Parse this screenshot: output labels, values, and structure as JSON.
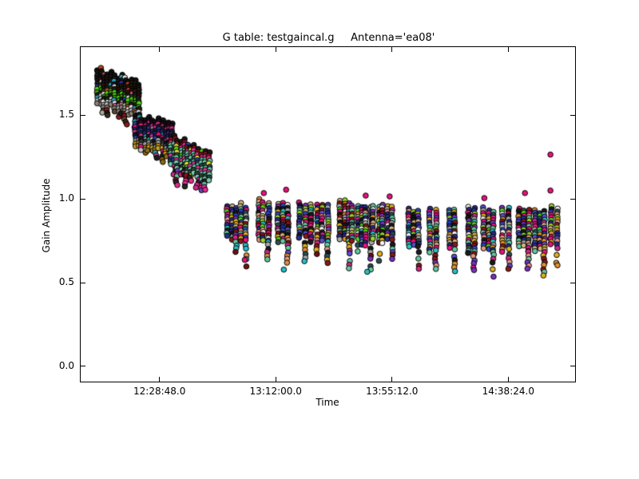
{
  "figure": {
    "background": "#ffffff",
    "spine_color": "#000000"
  },
  "chart_data": {
    "type": "scatter",
    "title": "G table: testgaincal.g     Antenna='ea08'",
    "xlabel": "Time",
    "ylabel": "Gain Amplitude",
    "grid": false,
    "legend": "none",
    "x_axis_unit": "time of day (hh:mm:ss)",
    "x_range_sec": [
      43170,
      54195
    ],
    "y_range": [
      -0.091,
      1.907
    ],
    "x_ticks": [
      {
        "label": "12:28:48.0",
        "sec": 44928
      },
      {
        "label": "13:12:00.0",
        "sec": 47520
      },
      {
        "label": "13:55:12.0",
        "sec": 50112
      },
      {
        "label": "14:38:24.0",
        "sec": 52704
      }
    ],
    "y_ticks": [
      {
        "label": "0.0",
        "value": 0.0
      },
      {
        "label": "0.5",
        "value": 0.5
      },
      {
        "label": "1.0",
        "value": 1.0
      },
      {
        "label": "1.5",
        "value": 1.5
      }
    ],
    "marker": {
      "shape": "circle",
      "radius": 3.3,
      "edge_color": "#000000"
    },
    "blocks": [
      {
        "t0": 43543,
        "t1": 44537,
        "amp_top_start": 1.77,
        "amp_top_end": 1.7,
        "core_rows": 13,
        "leg_rows": 8,
        "row_colors": [
          "#151310",
          "#1a1a12",
          "#23180f",
          "#101820",
          "#3a1408",
          "#1c1c1c",
          "#294013",
          "#52d414",
          "#3f9e0a",
          "#1e2014",
          "#dedede",
          "#bcbcbc",
          "#8a8178"
        ],
        "leg_colors": [
          "#2a2119",
          "#3a2a1a",
          "#c89060",
          "#8b1a1a",
          "#b0a89c",
          "#1c1c1c",
          "#d8d8d8",
          "#5a4632"
        ],
        "accent_colors": [
          "#30a0c0",
          "#2834a0",
          "#d06080",
          "#c84818",
          "#e8e8e8",
          "#58d018"
        ]
      },
      {
        "t0": 44378,
        "t1": 45265,
        "amp_top_start": 1.495,
        "amp_top_end": 1.45,
        "core_rows": 12,
        "leg_rows": 7,
        "row_colors": [
          "#161616",
          "#241018",
          "#d4258f",
          "#1d1d28",
          "#2a2e80",
          "#232868",
          "#e0389a",
          "#1a1a1a",
          "#34343c",
          "#9a9a9a",
          "#d4a017",
          "#caa02c"
        ],
        "leg_colors": [
          "#d4a017",
          "#b0b0b0",
          "#e0389a",
          "#1e1e1e",
          "#c8c8c8",
          "#8a6a14"
        ],
        "accent_colors": [
          "#3040c0",
          "#e8127e",
          "#20a0a0",
          "#c0c0c0"
        ]
      },
      {
        "t0": 45177,
        "t1": 46082,
        "amp_top_start": 1.375,
        "amp_top_end": 1.27,
        "core_rows": 11,
        "leg_rows": 9,
        "row_colors": [
          "#1b1b1b",
          "#8b1515",
          "#e82a90",
          "#63c8a0",
          "#6fcfa8",
          "#2f4f4f",
          "#5cc8a2",
          "#e8359e",
          "#69cda6",
          "#2a443a",
          "#74d0ac"
        ],
        "leg_colors": [
          "#e8359e",
          "#d02888",
          "#8b1515",
          "#7040c0",
          "#5cc8a2",
          "#242424",
          "#e82a90"
        ],
        "accent_colors": [
          "#50e018",
          "#3040c0",
          "#e8e030"
        ]
      }
    ],
    "scans": [
      {
        "sec": 46526,
        "top": 0.97,
        "lo": 0.76,
        "tail": 0.67,
        "cols": 3
      },
      {
        "sec": 46792,
        "top": 0.975,
        "lo": 0.74,
        "tail": 0.585,
        "cols": 2
      },
      {
        "sec": 47236,
        "top": 1.0,
        "lo": 0.76,
        "tail": 0.63,
        "cols": 3
      },
      {
        "sec": 47680,
        "top": 0.985,
        "lo": 0.74,
        "tail": 0.6,
        "cols": 3
      },
      {
        "sec": 48106,
        "top": 0.98,
        "lo": 0.75,
        "tail": 0.615,
        "cols": 2
      },
      {
        "sec": 48372,
        "top": 0.985,
        "lo": 0.73,
        "tail": 0.655,
        "cols": 2
      },
      {
        "sec": 48603,
        "top": 0.975,
        "lo": 0.76,
        "tail": 0.6,
        "cols": 2
      },
      {
        "sec": 49047,
        "top": 1.0,
        "lo": 0.75,
        "tail": 0.585,
        "cols": 3
      },
      {
        "sec": 49278,
        "top": 0.98,
        "lo": 0.74,
        "tail": 0.67,
        "cols": 2
      },
      {
        "sec": 49526,
        "top": 0.97,
        "lo": 0.72,
        "tail": 0.565,
        "cols": 3
      },
      {
        "sec": 49757,
        "top": 0.975,
        "lo": 0.75,
        "tail": 0.62,
        "cols": 2
      },
      {
        "sec": 50006,
        "top": 0.98,
        "lo": 0.74,
        "tail": 0.63,
        "cols": 3
      },
      {
        "sec": 50591,
        "top": 0.95,
        "lo": 0.7,
        "tail": 0.565,
        "cols": 3
      },
      {
        "sec": 51017,
        "top": 0.96,
        "lo": 0.68,
        "tail": 0.545,
        "cols": 2
      },
      {
        "sec": 51443,
        "top": 0.955,
        "lo": 0.71,
        "tail": 0.555,
        "cols": 2
      },
      {
        "sec": 51869,
        "top": 0.96,
        "lo": 0.67,
        "tail": 0.555,
        "cols": 2
      },
      {
        "sec": 52260,
        "top": 0.95,
        "lo": 0.7,
        "tail": 0.53,
        "cols": 3
      },
      {
        "sec": 52650,
        "top": 0.965,
        "lo": 0.68,
        "tail": 0.565,
        "cols": 2
      },
      {
        "sec": 53041,
        "top": 0.95,
        "lo": 0.7,
        "tail": 0.545,
        "cols": 3
      },
      {
        "sec": 53396,
        "top": 0.945,
        "lo": 0.68,
        "tail": 0.525,
        "cols": 3
      },
      {
        "sec": 53715,
        "top": 0.96,
        "lo": 0.72,
        "tail": 0.6,
        "cols": 2
      }
    ],
    "scan_palette": [
      "#E8127E",
      "#E8127E",
      "#E8127E",
      "#262E8C",
      "#262E8C",
      "#262E8C",
      "#1A1A1A",
      "#1A1A1A",
      "#55D418",
      "#9CD42A",
      "#66C9A0",
      "#66C9A0",
      "#28C0C8",
      "#E09030",
      "#D4B483",
      "#8B1818",
      "#8B1818",
      "#7B2FBE",
      "#5A4FCF",
      "#A8A8A8",
      "#F2F2F2",
      "#E0B020",
      "#E59880",
      "#2F4F4F",
      "#D02888",
      "#3048C8"
    ],
    "scan_top_palette": [
      "#D4B483",
      "#F2F2F2",
      "#9CD42A",
      "#66C9A0",
      "#E8127E",
      "#262E8C",
      "#7B2FBE",
      "#E09030"
    ],
    "tail_palette": [
      "#66C9A0",
      "#66C9A0",
      "#8B1818",
      "#7B2FBE",
      "#2F4F4F",
      "#E09030",
      "#E59880",
      "#28C0C8",
      "#5A4FCF",
      "#A8A8A8",
      "#701010",
      "#D02888",
      "#1A1A1A",
      "#E0B020"
    ],
    "outliers": [
      {
        "sec": 47254,
        "amp": 1.035,
        "color": "#E8127E"
      },
      {
        "sec": 47751,
        "amp": 1.055,
        "color": "#E8127E"
      },
      {
        "sec": 49526,
        "amp": 1.02,
        "color": "#E8127E"
      },
      {
        "sec": 50060,
        "amp": 1.015,
        "color": "#E8127E"
      },
      {
        "sec": 52171,
        "amp": 1.005,
        "color": "#E8127E"
      },
      {
        "sec": 53077,
        "amp": 1.035,
        "color": "#E8127E"
      },
      {
        "sec": 53645,
        "amp": 1.05,
        "color": "#E8127E"
      },
      {
        "sec": 53645,
        "amp": 1.265,
        "color": "#E8127E"
      },
      {
        "sec": 46830,
        "amp": 0.636,
        "color": "#E8127E"
      },
      {
        "sec": 47700,
        "amp": 0.578,
        "color": "#28C0C8"
      },
      {
        "sec": 49560,
        "amp": 0.565,
        "color": "#28C0C8"
      }
    ]
  }
}
